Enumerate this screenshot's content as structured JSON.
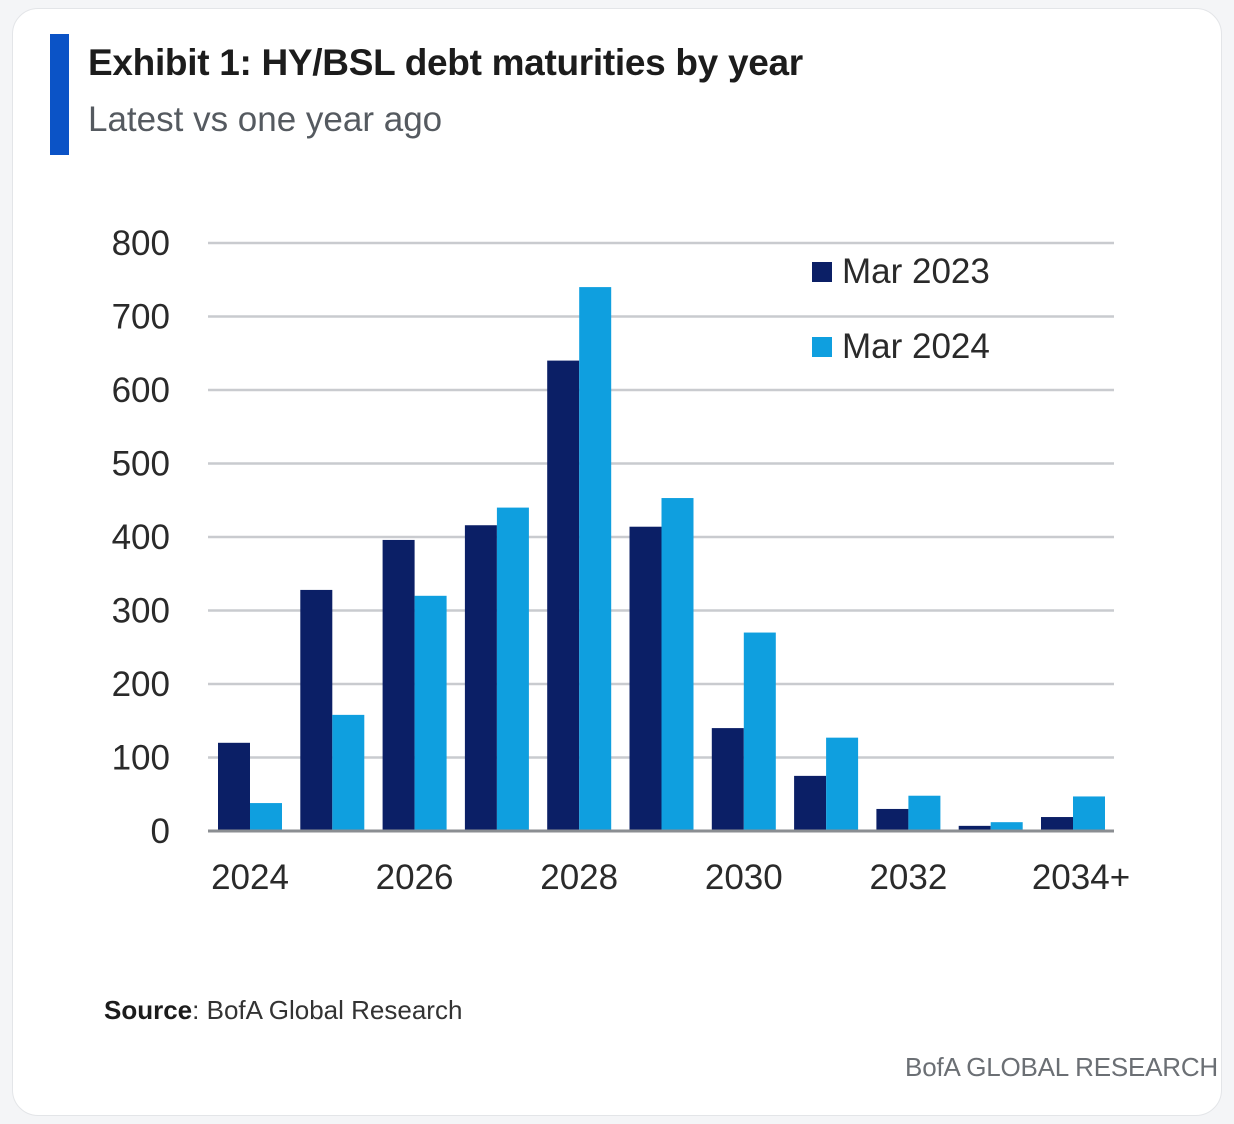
{
  "header": {
    "title": "Exhibit 1: HY/BSL debt maturities by year",
    "subtitle": "Latest vs one year ago"
  },
  "footer": {
    "source_label": "Source",
    "source_text": ": BofA Global Research",
    "brand": "BofA GLOBAL RESEARCH"
  },
  "colors": {
    "series_dark": "#0b1f66",
    "series_light": "#0f9fdf",
    "gridline": "#c9cbcf",
    "accent": "#0b53c6"
  },
  "chart_data": {
    "type": "bar",
    "categories": [
      "2024",
      "2025",
      "2026",
      "2027",
      "2028",
      "2029",
      "2030",
      "2031",
      "2032",
      "2033",
      "2034+"
    ],
    "tick_labels": [
      "2024",
      "2026",
      "2028",
      "2030",
      "2032",
      "2034+"
    ],
    "series": [
      {
        "name": "Mar 2023",
        "values": [
          120,
          328,
          396,
          416,
          640,
          414,
          140,
          75,
          30,
          7,
          19
        ]
      },
      {
        "name": "Mar 2024",
        "values": [
          38,
          158,
          320,
          440,
          740,
          453,
          270,
          127,
          48,
          12,
          47
        ]
      }
    ],
    "ylim": [
      0,
      800
    ],
    "yticks": [
      0,
      100,
      200,
      300,
      400,
      500,
      600,
      700,
      800
    ],
    "grid": true,
    "legend_position": "top-right"
  }
}
